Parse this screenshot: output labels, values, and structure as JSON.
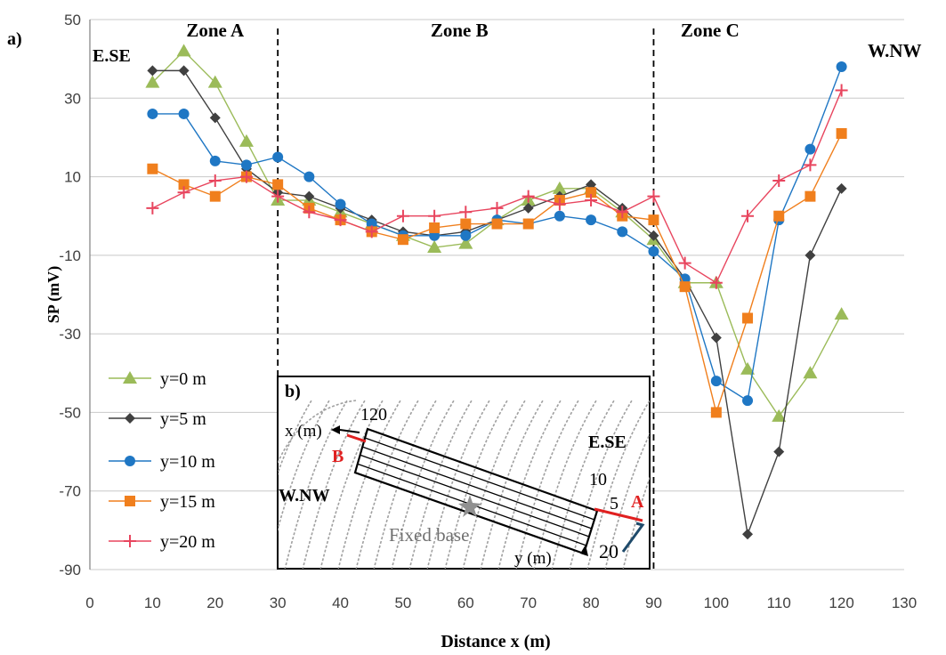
{
  "chart_data": {
    "type": "line",
    "panel_label": "a)",
    "xlabel": "Distance x (m)",
    "ylabel": "SP (mV)",
    "xlim": [
      0,
      130
    ],
    "ylim": [
      -90,
      50
    ],
    "x_ticks": [
      0,
      10,
      20,
      30,
      40,
      50,
      60,
      70,
      80,
      90,
      100,
      110,
      120,
      130
    ],
    "y_ticks": [
      -90,
      -70,
      -50,
      -30,
      -10,
      10,
      30,
      50
    ],
    "grid": "horizontal",
    "legend_position": "bottom-left",
    "zones": [
      {
        "label": "Zone A",
        "x_center": 20
      },
      {
        "label": "Zone B",
        "x_center": 59
      },
      {
        "label": "Zone C",
        "x_center": 99
      }
    ],
    "zone_boundaries": [
      30,
      90
    ],
    "direction_left": "E.SE",
    "direction_right": "W.NW",
    "x": [
      10,
      15,
      20,
      25,
      30,
      35,
      40,
      45,
      50,
      55,
      60,
      65,
      70,
      75,
      80,
      85,
      90,
      95,
      100,
      105,
      110,
      115,
      120
    ],
    "series": [
      {
        "name": "y=0 m",
        "color": "#9bbb59",
        "marker": "triangle",
        "values": [
          34,
          42,
          34,
          19,
          4,
          4,
          1,
          -2,
          -5,
          -8,
          -7,
          -1,
          4,
          7,
          7,
          1,
          -6,
          -17,
          -17,
          -39,
          -51,
          -40,
          -25
        ]
      },
      {
        "name": "y=5 m",
        "color": "#404040",
        "marker": "diamond",
        "values": [
          37,
          37,
          25,
          12,
          6,
          5,
          2,
          -1,
          -4,
          -5,
          -4,
          -1,
          2,
          5,
          8,
          2,
          -5,
          -16,
          -31,
          -81,
          -60,
          -10,
          7
        ]
      },
      {
        "name": "y=10 m",
        "color": "#1f77c4",
        "marker": "circle",
        "values": [
          26,
          26,
          14,
          13,
          15,
          10,
          3,
          -2,
          -5,
          -5,
          -5,
          -1,
          -2,
          0,
          -1,
          -4,
          -9,
          -16,
          -42,
          -47,
          -1,
          17,
          38
        ]
      },
      {
        "name": "y=15 m",
        "color": "#f07f1d",
        "marker": "square",
        "values": [
          12,
          8,
          5,
          10,
          8,
          2,
          -1,
          -4,
          -6,
          -3,
          -2,
          -2,
          -2,
          4,
          6,
          0,
          -1,
          -18,
          -50,
          -26,
          0,
          5,
          21
        ]
      },
      {
        "name": "y=20 m",
        "color": "#e8455e",
        "marker": "plus",
        "values": [
          2,
          6,
          9,
          10,
          5,
          1,
          -1,
          -4,
          0,
          0,
          1,
          2,
          5,
          3,
          4,
          1,
          5,
          -12,
          -17,
          0,
          9,
          13,
          32
        ]
      }
    ]
  },
  "inset": {
    "label": "b)",
    "x_axis_label": "x (m)",
    "y_axis_label": "y (m)",
    "label_120": "120",
    "label_10": "10",
    "label_5": "5",
    "label_20": "20",
    "point_a": "A",
    "point_b": "B",
    "direction_left": "W.NW",
    "direction_right": "E.SE",
    "fixed_base": "Fixed base"
  }
}
